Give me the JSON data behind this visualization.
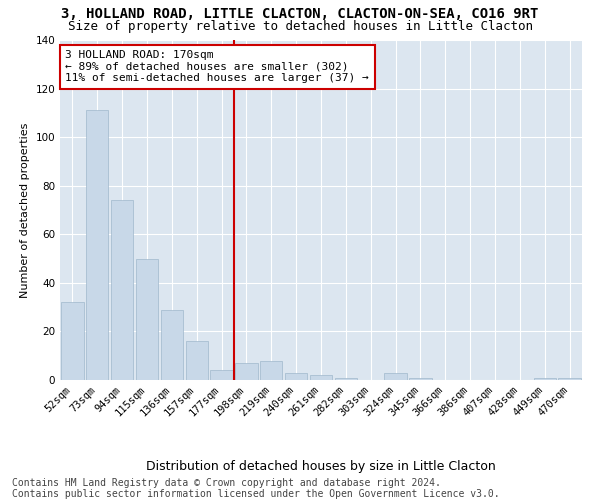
{
  "title": "3, HOLLAND ROAD, LITTLE CLACTON, CLACTON-ON-SEA, CO16 9RT",
  "subtitle": "Size of property relative to detached houses in Little Clacton",
  "xlabel": "Distribution of detached houses by size in Little Clacton",
  "ylabel": "Number of detached properties",
  "categories": [
    "52sqm",
    "73sqm",
    "94sqm",
    "115sqm",
    "136sqm",
    "157sqm",
    "177sqm",
    "198sqm",
    "219sqm",
    "240sqm",
    "261sqm",
    "282sqm",
    "303sqm",
    "324sqm",
    "345sqm",
    "366sqm",
    "386sqm",
    "407sqm",
    "428sqm",
    "449sqm",
    "470sqm"
  ],
  "values": [
    32,
    111,
    74,
    50,
    29,
    16,
    4,
    7,
    8,
    3,
    2,
    1,
    0,
    3,
    1,
    0,
    0,
    0,
    0,
    1,
    1
  ],
  "bar_color": "#c8d8e8",
  "bar_edgecolor": "#a0b8cc",
  "vline_color": "#cc0000",
  "annotation_text": "3 HOLLAND ROAD: 170sqm\n← 89% of detached houses are smaller (302)\n11% of semi-detached houses are larger (37) →",
  "annotation_box_facecolor": "#ffffff",
  "annotation_box_edgecolor": "#cc0000",
  "ylim": [
    0,
    140
  ],
  "yticks": [
    0,
    20,
    40,
    60,
    80,
    100,
    120,
    140
  ],
  "footer1": "Contains HM Land Registry data © Crown copyright and database right 2024.",
  "footer2": "Contains public sector information licensed under the Open Government Licence v3.0.",
  "background_color": "#dce6f0",
  "title_fontsize": 10,
  "subtitle_fontsize": 9,
  "xlabel_fontsize": 9,
  "ylabel_fontsize": 8,
  "tick_fontsize": 7.5,
  "footer_fontsize": 7,
  "annot_fontsize": 8
}
